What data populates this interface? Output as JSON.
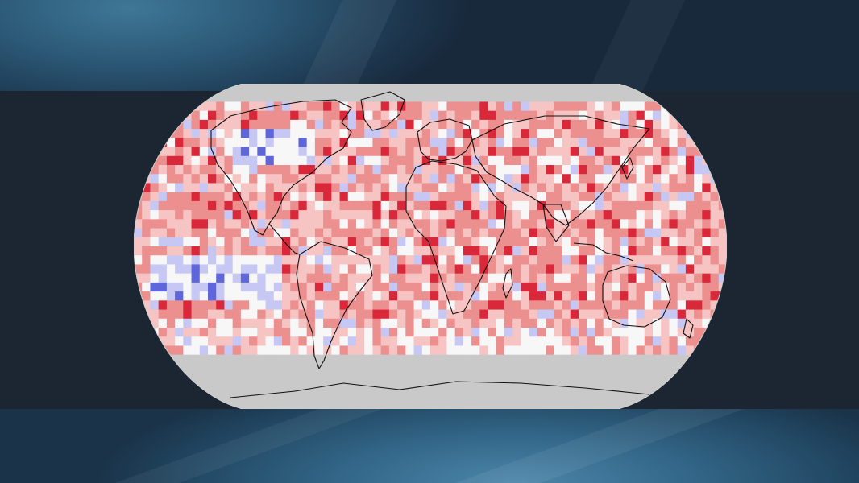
{
  "map": {
    "type": "global-temperature-anomaly-grid",
    "projection": "Robinson",
    "grid": {
      "cols": 36,
      "rows": 18,
      "cell_degrees": 5
    },
    "palette": {
      "no_data": "#c9c9c9",
      "much_cooler": "#5f66d9",
      "cooler": "#c7c7f4",
      "near_average": "#f7f7f7",
      "warmer": "#f7c4c4",
      "much_warmer": "#ec8f8f",
      "record_warm": "#d8283a"
    },
    "background": {
      "top": "#2c5a78",
      "band": "#1b2632",
      "bottom": "#34688a"
    },
    "coastline_color": "#111111"
  }
}
